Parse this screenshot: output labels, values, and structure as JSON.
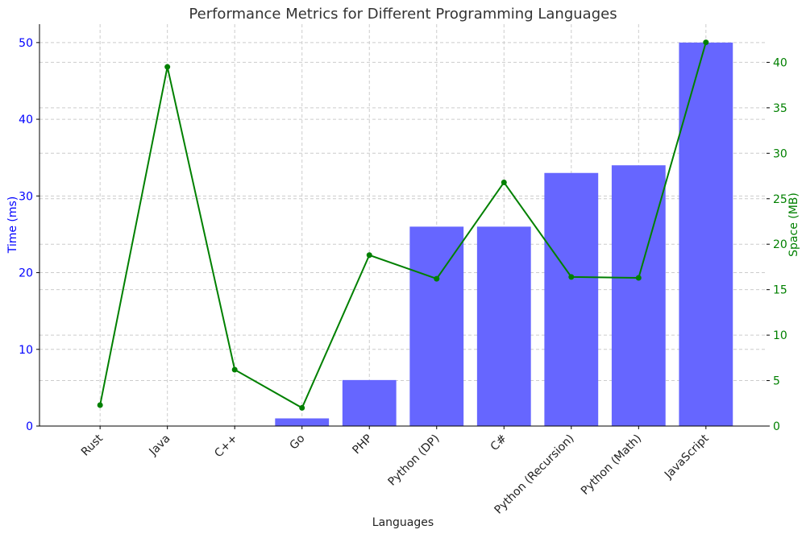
{
  "chart_data": {
    "type": "bar+line",
    "title": "Performance Metrics for Different Programming Languages",
    "xlabel": "Languages",
    "ylabel_left": "Time (ms)",
    "ylabel_right": "Space (MB)",
    "categories": [
      "Rust",
      "Java",
      "C++",
      "Go",
      "PHP",
      "Python (DP)",
      "C#",
      "Python (Recursion)",
      "Python (Math)",
      "JavaScript"
    ],
    "series": [
      {
        "name": "Time (ms)",
        "type": "bar",
        "axis": "left",
        "color": "#6666ff",
        "values": [
          0,
          0,
          0,
          1,
          6,
          26,
          26,
          33,
          34,
          50
        ]
      },
      {
        "name": "Space (MB)",
        "type": "line",
        "axis": "right",
        "color": "#008000",
        "values": [
          2.3,
          39.5,
          6.2,
          2.0,
          18.8,
          16.2,
          26.8,
          16.4,
          16.3,
          42.2
        ]
      }
    ],
    "ylim_left": [
      0,
      52.4
    ],
    "ylim_right": [
      0,
      44.2
    ],
    "yticks_left": [
      0,
      10,
      20,
      30,
      40,
      50
    ],
    "yticks_right": [
      0,
      5,
      10,
      15,
      20,
      25,
      30,
      35,
      40
    ],
    "left_axis_color": "#0000ff",
    "right_axis_color": "#008000",
    "grid": true
  }
}
